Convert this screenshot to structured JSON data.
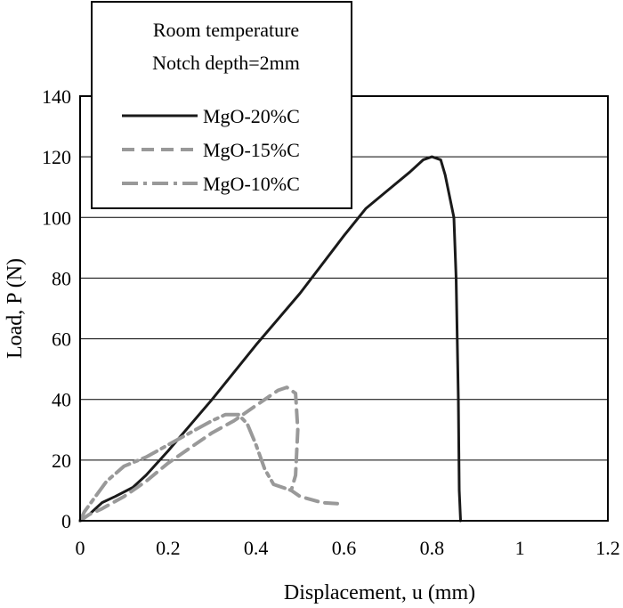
{
  "chart_data": {
    "type": "line",
    "xlabel": "Displacement, u   (mm)",
    "ylabel": "Load, P (N)",
    "xlim": [
      0,
      1.2
    ],
    "ylim": [
      0,
      140
    ],
    "x_ticks": [
      "0",
      "0.2",
      "0.4",
      "0.6",
      "0.8",
      "1",
      "1.2"
    ],
    "y_ticks": [
      "0",
      "20",
      "40",
      "60",
      "80",
      "100",
      "120",
      "140"
    ],
    "grid": "horizontal",
    "legend_position": "top-left",
    "legend_header": [
      "Room temperature",
      "Notch depth=2mm"
    ],
    "series": [
      {
        "name": "MgO-20%C",
        "color": "#1a1a1a",
        "dash": "solid",
        "x": [
          0,
          0.02,
          0.05,
          0.08,
          0.12,
          0.15,
          0.2,
          0.3,
          0.4,
          0.5,
          0.6,
          0.65,
          0.7,
          0.75,
          0.78,
          0.8,
          0.82,
          0.83,
          0.84,
          0.85,
          0.855,
          0.86,
          0.862,
          0.865
        ],
        "y": [
          0,
          2,
          6,
          8,
          11,
          15,
          23,
          40,
          58,
          75,
          94,
          103,
          109,
          115,
          119,
          120,
          119,
          114,
          107,
          100,
          80,
          40,
          10,
          0
        ]
      },
      {
        "name": "MgO-15%C",
        "color": "#999999",
        "dash": "dashed",
        "x": [
          0,
          0.02,
          0.05,
          0.1,
          0.15,
          0.2,
          0.25,
          0.3,
          0.35,
          0.4,
          0.45,
          0.47,
          0.49,
          0.495,
          0.49,
          0.48,
          0.5,
          0.55,
          0.6
        ],
        "y": [
          0,
          2,
          4,
          8,
          13,
          19,
          24,
          29,
          33,
          38,
          43,
          44,
          42,
          30,
          15,
          10,
          8,
          6,
          5.5
        ]
      },
      {
        "name": "MgO-10%C",
        "color": "#999999",
        "dash": "dashdot",
        "x": [
          0,
          0.01,
          0.03,
          0.06,
          0.1,
          0.15,
          0.2,
          0.25,
          0.3,
          0.33,
          0.36,
          0.38,
          0.4,
          0.42,
          0.44,
          0.48
        ],
        "y": [
          0,
          3,
          7,
          13,
          18,
          21,
          25,
          29,
          33,
          35,
          35,
          32,
          25,
          17,
          12,
          10
        ]
      }
    ]
  }
}
